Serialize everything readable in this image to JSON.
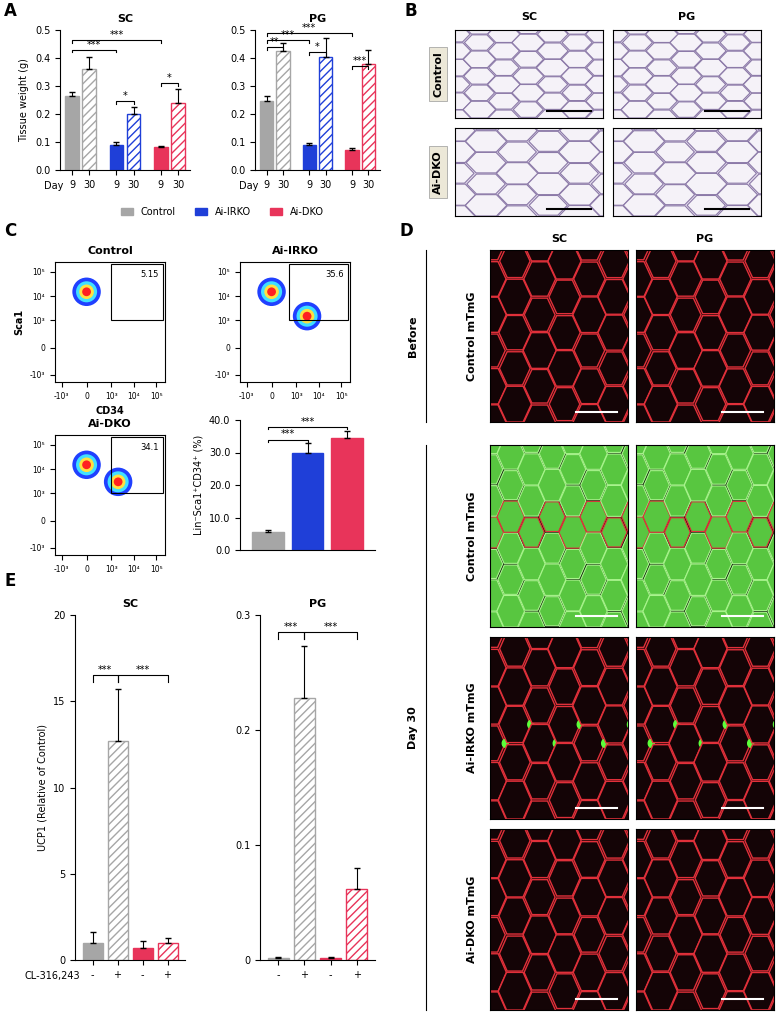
{
  "panel_labels": [
    "A",
    "B",
    "C",
    "D",
    "E"
  ],
  "chart_data": [
    {
      "type": "bar",
      "title": "SC",
      "ylabel": "Tissue weight (g)",
      "xlabel": "Day",
      "categories": [
        "9",
        "30"
      ],
      "series": [
        {
          "name": "Control",
          "color": "#a6a6a6",
          "values": [
            0.265,
            0.36
          ],
          "errors": [
            0.013,
            0.045
          ]
        },
        {
          "name": "Ai-IRKO",
          "color": "#1f3fd8",
          "values": [
            0.09,
            0.2
          ],
          "errors": [
            0.01,
            0.025
          ]
        },
        {
          "name": "Ai-DKO",
          "color": "#e8345a",
          "values": [
            0.082,
            0.24
          ],
          "errors": [
            0.005,
            0.05
          ]
        }
      ],
      "ylim": [
        0,
        0.5
      ],
      "yticks": [
        {
          "value": 0,
          "label": "0.0"
        },
        0.1,
        0.2,
        0.3,
        0.4,
        0.5
      ],
      "legend": "upper center",
      "annotations": [
        {
          "from": [
            0,
            0
          ],
          "to": [
            1,
            0
          ],
          "y": 0.43,
          "text": "***"
        },
        {
          "from": [
            0,
            0
          ],
          "to": [
            2,
            0
          ],
          "y": 0.465,
          "text": "***"
        },
        {
          "from": [
            1,
            0
          ],
          "to": [
            1,
            1
          ],
          "y": 0.245,
          "text": "*"
        },
        {
          "from": [
            2,
            0
          ],
          "to": [
            2,
            1
          ],
          "y": 0.31,
          "text": "*"
        }
      ]
    },
    {
      "type": "bar",
      "title": "PG",
      "xlabel": "Day",
      "categories": [
        "9",
        "30"
      ],
      "series": [
        {
          "name": "Control",
          "color": "#a6a6a6",
          "values": [
            0.248,
            0.425
          ],
          "errors": [
            0.015,
            0.03
          ]
        },
        {
          "name": "Ai-IRKO",
          "color": "#1f3fd8",
          "values": [
            0.088,
            0.405
          ],
          "errors": [
            0.008,
            0.065
          ]
        },
        {
          "name": "Ai-DKO",
          "color": "#e8345a",
          "values": [
            0.07,
            0.378
          ],
          "errors": [
            0.01,
            0.05
          ]
        }
      ],
      "ylim": [
        0,
        0.5
      ],
      "yticks": [
        {
          "value": 0,
          "label": "0.0"
        },
        0.1,
        0.2,
        0.3,
        0.4,
        0.5
      ],
      "annotations": [
        {
          "from": [
            0,
            0
          ],
          "to": [
            0,
            1
          ],
          "y": 0.44,
          "text": "**"
        },
        {
          "from": [
            0,
            0
          ],
          "to": [
            1,
            0
          ],
          "y": 0.465,
          "text": "***"
        },
        {
          "from": [
            0,
            0
          ],
          "to": [
            2,
            0
          ],
          "y": 0.49,
          "text": "***"
        },
        {
          "from": [
            1,
            0
          ],
          "to": [
            1,
            1
          ],
          "y": 0.42,
          "text": "*"
        },
        {
          "from": [
            2,
            0
          ],
          "to": [
            2,
            1
          ],
          "y": 0.37,
          "text": "***"
        }
      ]
    },
    {
      "type": "bar",
      "ylabel": "Lin⁻Sca1⁺CD34⁺ (%)",
      "categories": [
        null,
        null,
        null
      ],
      "series": [
        {
          "values": [
            5.4,
            29.7,
            34.5
          ],
          "errors": [
            0.9,
            3.2,
            2.0
          ],
          "colors": [
            "#a6a6a6",
            "#1f3fd8",
            "#e8345a"
          ]
        }
      ],
      "ylim": [
        0,
        40
      ],
      "yticks": [
        {
          "value": 0,
          "label": "0.0"
        },
        {
          "value": 10,
          "label": "10.0"
        },
        {
          "value": 20,
          "label": "20.0"
        },
        {
          "value": 30,
          "label": "30.0"
        },
        {
          "value": 40,
          "label": "40.0"
        }
      ],
      "annotations": [
        {
          "from": [
            0,
            0
          ],
          "to": [
            0,
            1
          ],
          "y": 34,
          "text": "***"
        },
        {
          "from": [
            0,
            0
          ],
          "to": [
            0,
            2
          ],
          "y": 38,
          "text": "***"
        }
      ]
    },
    {
      "type": "bar",
      "title": "SC",
      "ylabel": "UCP1 (Relative of Control)",
      "xlabel": "CL-316,243",
      "categories": [
        "-",
        "+",
        "-",
        "+"
      ],
      "series": [
        {
          "values": [
            1.0,
            12.7,
            0.7,
            1.0
          ],
          "errors": [
            0.6,
            3.0,
            0.4,
            0.3
          ],
          "colors": [
            "#a6a6a6",
            "#a6a6a6",
            "#e8345a",
            "#e8345a"
          ]
        }
      ],
      "ylim": [
        0,
        20
      ],
      "yticks": [
        0,
        5,
        10,
        15,
        20
      ],
      "annotations": [
        {
          "from": [
            0,
            0
          ],
          "to": [
            0,
            1
          ],
          "y": 16.5,
          "text": "***"
        },
        {
          "from": [
            0,
            1
          ],
          "to": [
            0,
            3
          ],
          "y": 16.5,
          "text": "***"
        }
      ]
    },
    {
      "type": "bar",
      "title": "PG",
      "categories": [
        "-",
        "+",
        "-",
        "+"
      ],
      "series": [
        {
          "values": [
            0.002,
            0.228,
            0.002,
            0.062
          ],
          "errors": [
            0.001,
            0.045,
            0.001,
            0.018
          ],
          "colors": [
            "#a6a6a6",
            "#a6a6a6",
            "#e8345a",
            "#e8345a"
          ]
        }
      ],
      "ylim": [
        0,
        0.3
      ],
      "yticks": [
        0,
        0.1,
        0.2,
        0.3
      ],
      "annotations": [
        {
          "from": [
            0,
            0
          ],
          "to": [
            0,
            1
          ],
          "y": 0.285,
          "text": "***"
        },
        {
          "from": [
            0,
            1
          ],
          "to": [
            0,
            3
          ],
          "y": 0.285,
          "text": "***"
        }
      ]
    }
  ],
  "histology": {
    "columns": [
      "SC",
      "PG"
    ],
    "rows": [
      "Control",
      "Ai-DKO"
    ]
  },
  "flow_cytometry": {
    "xlabel": "CD34",
    "ylabel": "Sca1",
    "xlim": [
      -2000,
      250000
    ],
    "ylim": [
      -2000,
      250000
    ],
    "xticks": [
      {
        "value": -1000,
        "label": "-10³"
      },
      0,
      {
        "value": 1000,
        "label": "10³"
      },
      {
        "value": 10000,
        "label": "10⁴"
      },
      {
        "value": 100000,
        "label": "10⁵"
      }
    ],
    "yticks": [
      {
        "value": -1000,
        "label": "-10³"
      },
      0,
      {
        "value": 1000,
        "label": "10³"
      },
      {
        "value": 10000,
        "label": "10⁴"
      },
      {
        "value": 100000,
        "label": "10⁵"
      }
    ],
    "plots": [
      {
        "title": "Control",
        "gate_percent": 5.15,
        "gate": {
          "x": [
            1000,
            200000
          ],
          "y": [
            1000,
            200000
          ]
        },
        "populations": [
          [
            0,
            15000
          ]
        ]
      },
      {
        "title": "Ai-IRKO",
        "gate_percent": 35.6,
        "gate": {
          "x": [
            700,
            200000
          ],
          "y": [
            1000,
            200000
          ]
        },
        "populations": [
          [
            0,
            15000
          ],
          [
            3000,
            1500
          ]
        ]
      },
      {
        "title": "Ai-DKO",
        "gate_percent": 34.1,
        "gate": {
          "x": [
            1000,
            200000
          ],
          "y": [
            1000,
            200000
          ]
        },
        "populations": [
          [
            0,
            15000
          ],
          [
            2000,
            3000
          ]
        ]
      }
    ]
  },
  "fluorescence": {
    "columns": [
      "SC",
      "PG"
    ],
    "groups": [
      {
        "label": "Before",
        "rows": [
          "Control mTmG"
        ]
      },
      {
        "label": "Day 30",
        "rows": [
          "Control mTmG",
          "Ai-IRKO mTmG",
          "Ai-DKO mTmG"
        ]
      }
    ]
  }
}
